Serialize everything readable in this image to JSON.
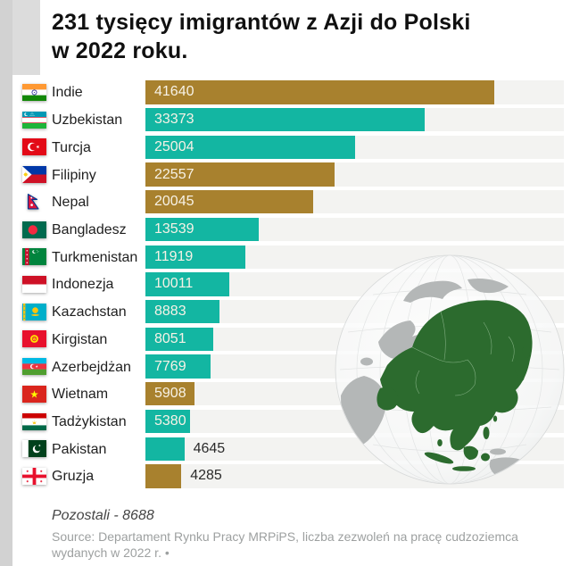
{
  "title": {
    "line1": "231 tysięcy imigrantów z Azji do Polski",
    "line2": "w 2022 roku."
  },
  "chart_data": {
    "type": "bar",
    "orientation": "horizontal",
    "title": "231 tysięcy imigrantów z Azji do Polski w 2022 roku.",
    "xlim": [
      0,
      50000
    ],
    "grid": false,
    "legend": "none",
    "categories": [
      "Indie",
      "Uzbekistan",
      "Turcja",
      "Filipiny",
      "Nepal",
      "Bangladesz",
      "Turkmenistan",
      "Indonezja",
      "Kazachstan",
      "Kirgistan",
      "Azerbejdżan",
      "Wietnam",
      "Tadżykistan",
      "Pakistan",
      "Gruzja"
    ],
    "values": [
      41640,
      33373,
      25004,
      22557,
      20045,
      13539,
      11919,
      10011,
      8883,
      8051,
      7769,
      5908,
      5380,
      4645,
      4285
    ],
    "rows": [
      {
        "label": "Indie",
        "value": 41640,
        "color": "#a8812e",
        "flag": "india",
        "value_inside": true
      },
      {
        "label": "Uzbekistan",
        "value": 33373,
        "color": "#13b6a2",
        "flag": "uzbekistan",
        "value_inside": true
      },
      {
        "label": "Turcja",
        "value": 25004,
        "color": "#13b6a2",
        "flag": "turkey",
        "value_inside": true
      },
      {
        "label": "Filipiny",
        "value": 22557,
        "color": "#a8812e",
        "flag": "philippines",
        "value_inside": true
      },
      {
        "label": "Nepal",
        "value": 20045,
        "color": "#a8812e",
        "flag": "nepal",
        "value_inside": true
      },
      {
        "label": "Bangladesz",
        "value": 13539,
        "color": "#13b6a2",
        "flag": "bangladesh",
        "value_inside": true
      },
      {
        "label": "Turkmenistan",
        "value": 11919,
        "color": "#13b6a2",
        "flag": "turkmenistan",
        "value_inside": true
      },
      {
        "label": "Indonezja",
        "value": 10011,
        "color": "#13b6a2",
        "flag": "indonesia",
        "value_inside": true
      },
      {
        "label": "Kazachstan",
        "value": 8883,
        "color": "#13b6a2",
        "flag": "kazakhstan",
        "value_inside": true
      },
      {
        "label": "Kirgistan",
        "value": 8051,
        "color": "#13b6a2",
        "flag": "kyrgyzstan",
        "value_inside": true
      },
      {
        "label": "Azerbejdżan",
        "value": 7769,
        "color": "#13b6a2",
        "flag": "azerbaijan",
        "value_inside": true
      },
      {
        "label": "Wietnam",
        "value": 5908,
        "color": "#a8812e",
        "flag": "vietnam",
        "value_inside": true
      },
      {
        "label": "Tadżykistan",
        "value": 5380,
        "color": "#13b6a2",
        "flag": "tajikistan",
        "value_inside": true
      },
      {
        "label": "Pakistan",
        "value": 4645,
        "color": "#13b6a2",
        "flag": "pakistan",
        "value_inside": false
      },
      {
        "label": "Gruzja",
        "value": 4285,
        "color": "#a8812e",
        "flag": "georgia",
        "value_inside": false
      }
    ],
    "annotations": [
      "Pozostali - 8688"
    ]
  },
  "colors": {
    "bar_gold": "#a8812e",
    "bar_teal": "#13b6a2",
    "track": "#f3f3f1",
    "asia_green": "#2c6b2e",
    "land_gray": "#b4b7b7"
  },
  "icons": {
    "globe": "asia-globe-image"
  },
  "footer": {
    "pozostali": "Pozostali - 8688",
    "source_lines": [
      "Source: Departament Rynku Pracy MRPiPS, liczba zezwoleń na pracę cudzoziemca",
      "wydanych w 2022 r. •"
    ]
  }
}
